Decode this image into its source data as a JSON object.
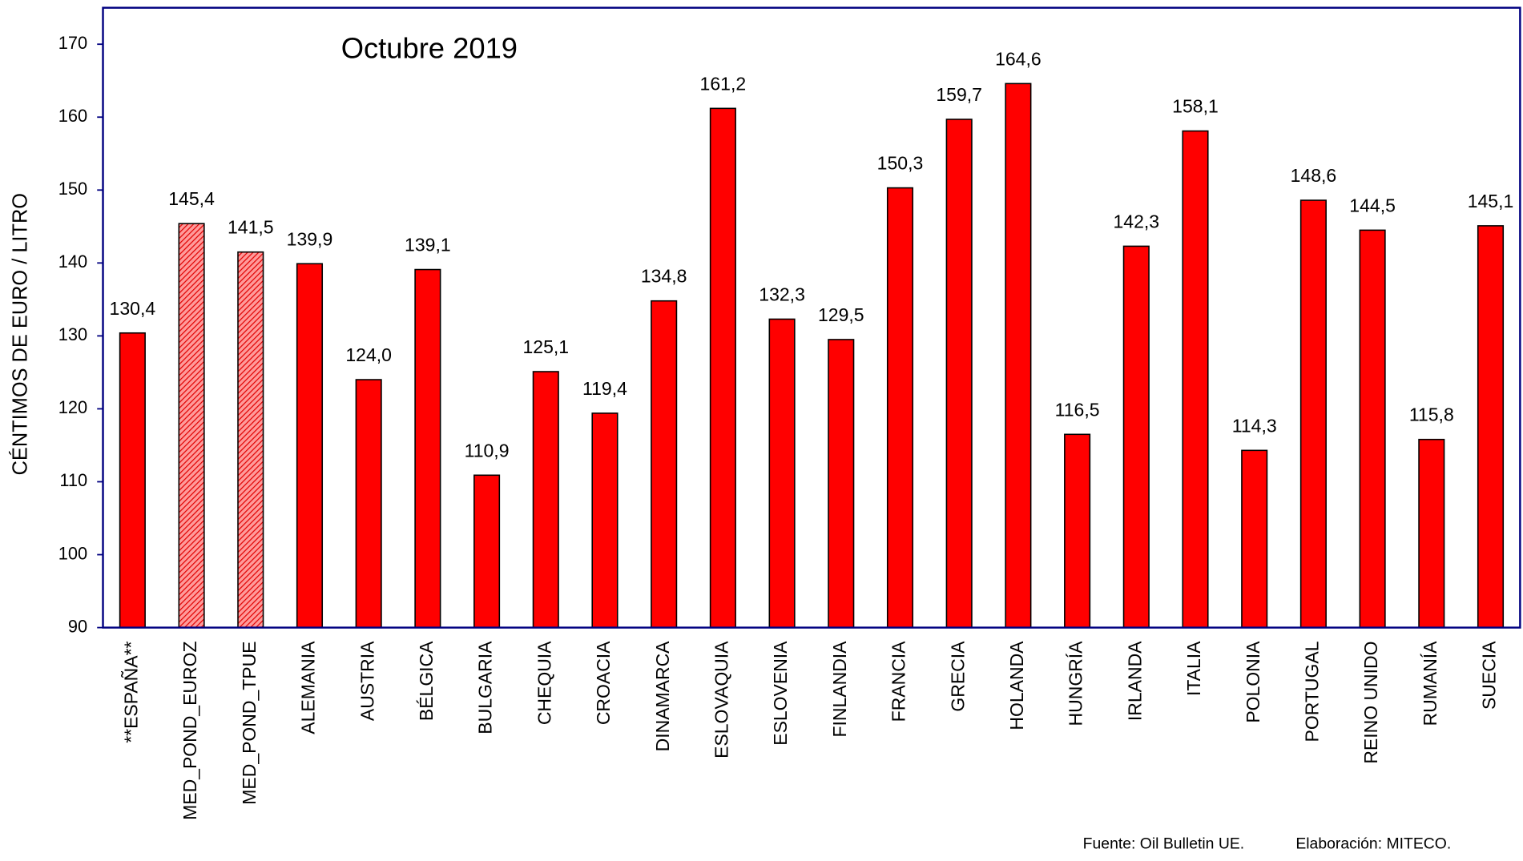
{
  "chart_data": {
    "type": "bar",
    "title": "Octubre 2019",
    "y_label": "CÉNTIMOS DE EURO / LITRO",
    "source": "Fuente: Oil Bulletin UE.",
    "credit": "Elaboración: MITECO.",
    "categories": [
      "**ESPAÑA**",
      "MED_POND_EUROZ",
      "MED_POND_TPUE",
      "ALEMANIA",
      "AUSTRIA",
      "BÉLGICA",
      "BULGARIA",
      "CHEQUIA",
      "CROACIA",
      "DINAMARCA",
      "ESLOVAQUIA",
      "ESLOVENIA",
      "FINLANDIA",
      "FRANCIA",
      "GRECIA",
      "HOLANDA",
      "HUNGRÍA",
      "IRLANDA",
      "ITALIA",
      "POLONIA",
      "PORTUGAL",
      "REINO UNIDO",
      "RUMANÍA",
      "SUECIA"
    ],
    "values": [
      130.4,
      145.4,
      141.5,
      139.9,
      124.0,
      139.1,
      110.9,
      125.1,
      119.4,
      134.8,
      161.2,
      132.3,
      129.5,
      150.3,
      159.7,
      164.6,
      116.5,
      142.3,
      158.1,
      114.3,
      148.6,
      144.5,
      115.8,
      145.1
    ],
    "value_labels": [
      "130,4",
      "145,4",
      "141,5",
      "139,9",
      "124,0",
      "139,1",
      "110,9",
      "125,1",
      "119,4",
      "134,8",
      "161,2",
      "132,3",
      "129,5",
      "150,3",
      "159,7",
      "164,6",
      "116,5",
      "142,3",
      "158,1",
      "114,3",
      "148,6",
      "144,5",
      "115,8",
      "145,1"
    ],
    "hatched": [
      false,
      true,
      true,
      false,
      false,
      false,
      false,
      false,
      false,
      false,
      false,
      false,
      false,
      false,
      false,
      false,
      false,
      false,
      false,
      false,
      false,
      false,
      false,
      false
    ],
    "color": "#ff0000",
    "ylim": [
      90,
      175
    ],
    "yticks": [
      90,
      100,
      110,
      120,
      130,
      140,
      150,
      160,
      170
    ],
    "grid": false
  }
}
